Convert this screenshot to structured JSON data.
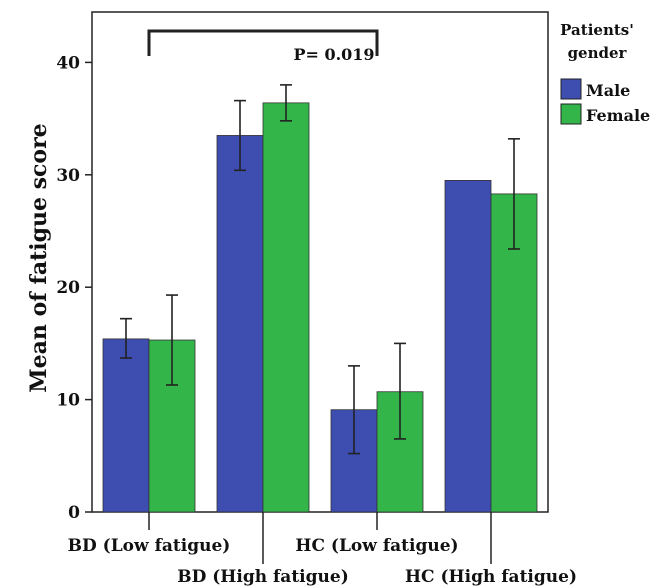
{
  "chart_data": {
    "type": "bar",
    "title": "",
    "ylabel": "Mean of fatigue score",
    "xlabel": "",
    "ylim": [
      0,
      45
    ],
    "yticks": [
      0,
      10,
      20,
      30,
      40
    ],
    "categories": [
      "BD (Low fatigue)",
      "BD (High fatigue)",
      "HC (Low fatigue)",
      "HC (High fatigue)"
    ],
    "legend": {
      "title_line1": "Patients'",
      "title_line2": "gender",
      "position": "right"
    },
    "series": [
      {
        "name": "Male",
        "color": "#3D4DB0",
        "values": [
          15.4,
          33.5,
          9.1,
          29.5
        ],
        "err_low": [
          13.7,
          30.4,
          5.2,
          29.5
        ],
        "err_high": [
          17.2,
          36.6,
          13.0,
          29.5
        ]
      },
      {
        "name": "Female",
        "color": "#33B54A",
        "values": [
          15.3,
          36.4,
          10.7,
          28.3
        ],
        "err_low": [
          11.3,
          34.8,
          6.5,
          23.4
        ],
        "err_high": [
          19.3,
          38.0,
          15.0,
          33.2
        ]
      }
    ],
    "annotation": {
      "text": "P= 0.019",
      "from_category": 0,
      "to_category": 2
    },
    "grid": false
  }
}
